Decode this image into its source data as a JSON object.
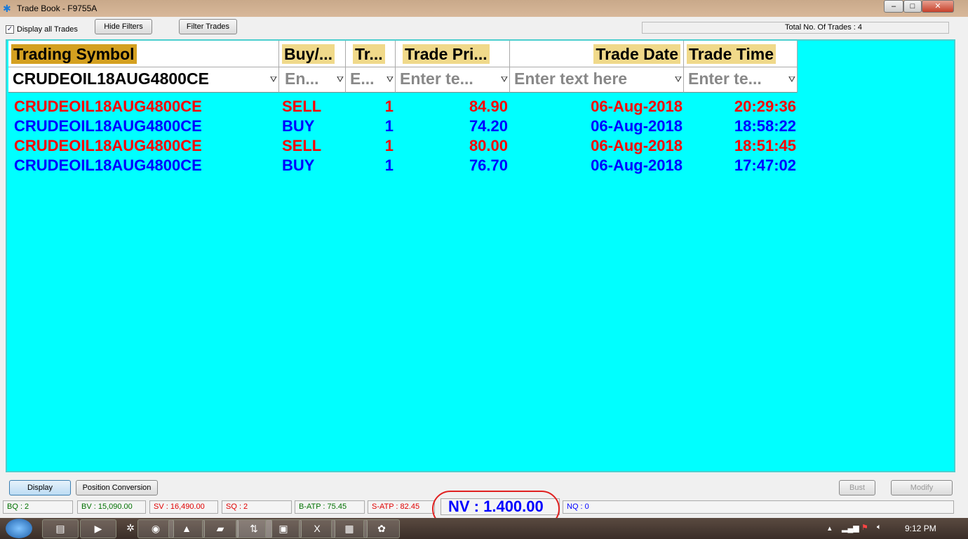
{
  "window": {
    "title": "Trade Book - F9755A",
    "minimize": "–",
    "maximize": "□",
    "close": "✕"
  },
  "toolbar": {
    "display_all_label": "Display all Trades",
    "display_all_checked": true,
    "hide_filters": "Hide Filters",
    "filter_trades": "Filter Trades",
    "total_trades": "Total No. Of Trades : 4"
  },
  "table": {
    "columns": [
      "Trading Symbol",
      "Buy/...",
      "Tr...",
      "Trade Pri...",
      "Trade Date",
      "Trade Time"
    ],
    "filters": [
      "CRUDEOIL18AUG4800CE",
      "En...",
      "E...",
      "Enter te...",
      "Enter text here",
      "Enter te..."
    ],
    "rows": [
      {
        "symbol": "CRUDEOIL18AUG4800CE",
        "side": "SELL",
        "qty": "1",
        "price": "84.90",
        "date": "06-Aug-2018",
        "time": "20:29:36",
        "color": "#ff0000"
      },
      {
        "symbol": "CRUDEOIL18AUG4800CE",
        "side": "BUY",
        "qty": "1",
        "price": "74.20",
        "date": "06-Aug-2018",
        "time": "18:58:22",
        "color": "#0000ff"
      },
      {
        "symbol": "CRUDEOIL18AUG4800CE",
        "side": "SELL",
        "qty": "1",
        "price": "80.00",
        "date": "06-Aug-2018",
        "time": "18:51:45",
        "color": "#ff0000"
      },
      {
        "symbol": "CRUDEOIL18AUG4800CE",
        "side": "BUY",
        "qty": "1",
        "price": "76.70",
        "date": "06-Aug-2018",
        "time": "17:47:02",
        "color": "#0000ff"
      }
    ]
  },
  "buttons": {
    "display": "Display",
    "position_conversion": "Position Conversion",
    "bust": "Bust",
    "modify": "Modify"
  },
  "status": {
    "bq": "BQ : 2",
    "bv": "BV : 15,090.00",
    "sv": "SV : 16,490.00",
    "sq": "SQ : 2",
    "batp": "B-ATP : 75.45",
    "satp": "S-ATP : 82.45",
    "nv": "NV : 1.400.00",
    "nq": "NQ : 0"
  },
  "tray": {
    "time": "9:12 PM"
  }
}
